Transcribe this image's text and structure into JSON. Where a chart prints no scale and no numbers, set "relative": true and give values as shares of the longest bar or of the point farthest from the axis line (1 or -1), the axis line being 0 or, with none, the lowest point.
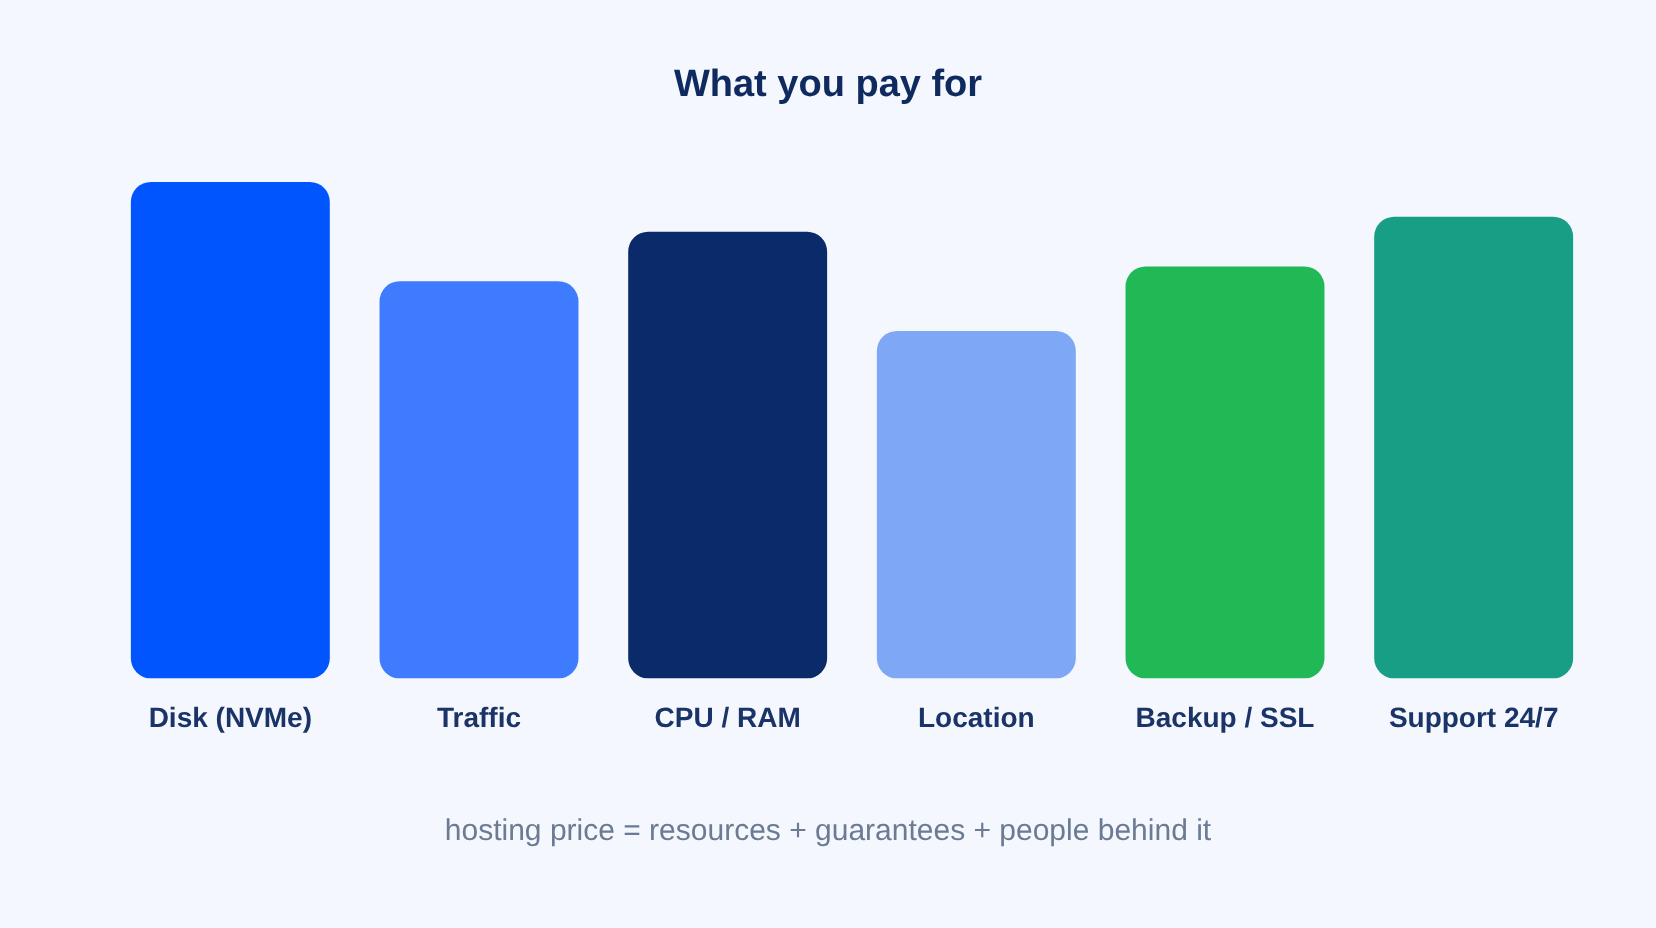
{
  "chart_data": {
    "type": "bar",
    "title": "What you pay for",
    "categories": [
      "Disk (NVMe)",
      "Traffic",
      "CPU / RAM",
      "Location",
      "Backup / SSL",
      "Support 24/7"
    ],
    "values": [
      1,
      0.8,
      0.9,
      0.7,
      0.83,
      0.93
    ],
    "colors": [
      "#0055ff",
      "#3f7bff",
      "#0b2a6a",
      "#7ea7f6",
      "#21b955",
      "#179e84"
    ],
    "relative": true,
    "annotations": [
      "hosting price = resources + guarantees + people behind it"
    ]
  }
}
